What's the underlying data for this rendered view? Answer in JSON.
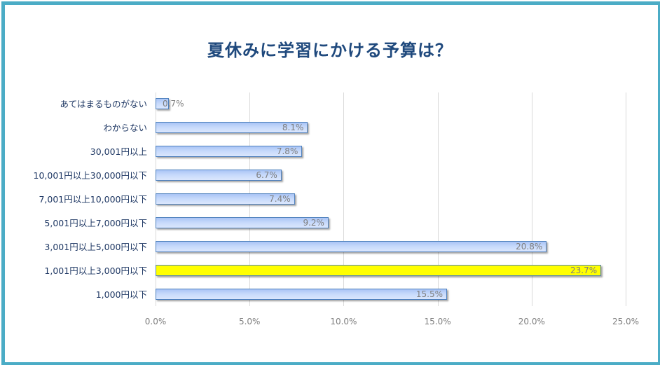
{
  "chart_data": {
    "type": "bar",
    "orientation": "horizontal",
    "title": "夏休みに学習にかける予算は？",
    "xlabel": "",
    "ylabel": "",
    "xlim": [
      0,
      25
    ],
    "grid": true,
    "legend": null,
    "categories": [
      "あてはまるものがない",
      "わからない",
      "30,001円以上",
      "10,001円以上30,000円以下",
      "7,001円以上10,000円以下",
      "5,001円以上7,000円以下",
      "3,001円以上5,000円以下",
      "1,001円以上3,000円以下",
      "1,000円以下"
    ],
    "values": [
      0.7,
      8.1,
      7.8,
      6.7,
      7.4,
      9.2,
      20.8,
      23.7,
      15.5
    ],
    "value_labels": [
      "0.7%",
      "8.1%",
      "7.8%",
      "6.7%",
      "7.4%",
      "9.2%",
      "20.8%",
      "23.7%",
      "15.5%"
    ],
    "highlighted_category": "1,001円以上3,000円以下",
    "x_ticks": [
      "0.0%",
      "5.0%",
      "10.0%",
      "15.0%",
      "20.0%",
      "25.0%"
    ],
    "colors": {
      "bar_fill": "#c6d9fb",
      "bar_border": "#4f81bd",
      "highlight_fill": "#ffff00",
      "title": "#1f497d",
      "frame": "#4bacc6",
      "label": "#1f3864",
      "value_label": "#7f7f7f",
      "grid": "#d9d9d9"
    }
  }
}
